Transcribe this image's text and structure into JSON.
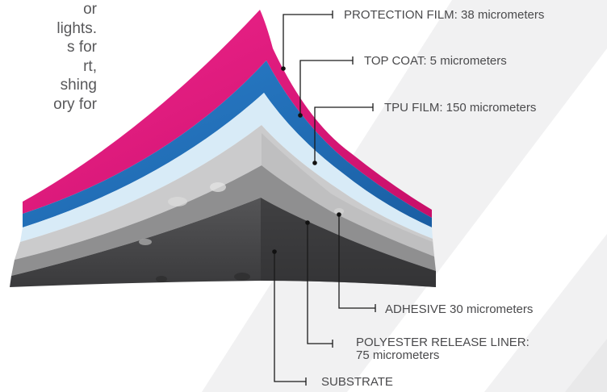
{
  "intro_text": {
    "lines": [
      "or",
      "lights.",
      "s for",
      "rt,",
      "shing",
      "ory for"
    ]
  },
  "layers": [
    {
      "label": "PROTECTION FILM: 38 micrometers",
      "color": "#e5177e"
    },
    {
      "label": "TOP COAT: 5 micrometers",
      "color": "#1e6fb8"
    },
    {
      "label": "TPU FILM: 150 micrometers",
      "color": "#d6eaf6"
    },
    {
      "label": "ADHESIVE 30 micrometers",
      "color": "#c9c9c9"
    },
    {
      "label": "POLYESTER RELEASE LINER:",
      "label_line2": "75 micrometers",
      "color": "#8e8e8e"
    },
    {
      "label": "SUBSTRATE",
      "color": "#4a4a4c"
    }
  ]
}
